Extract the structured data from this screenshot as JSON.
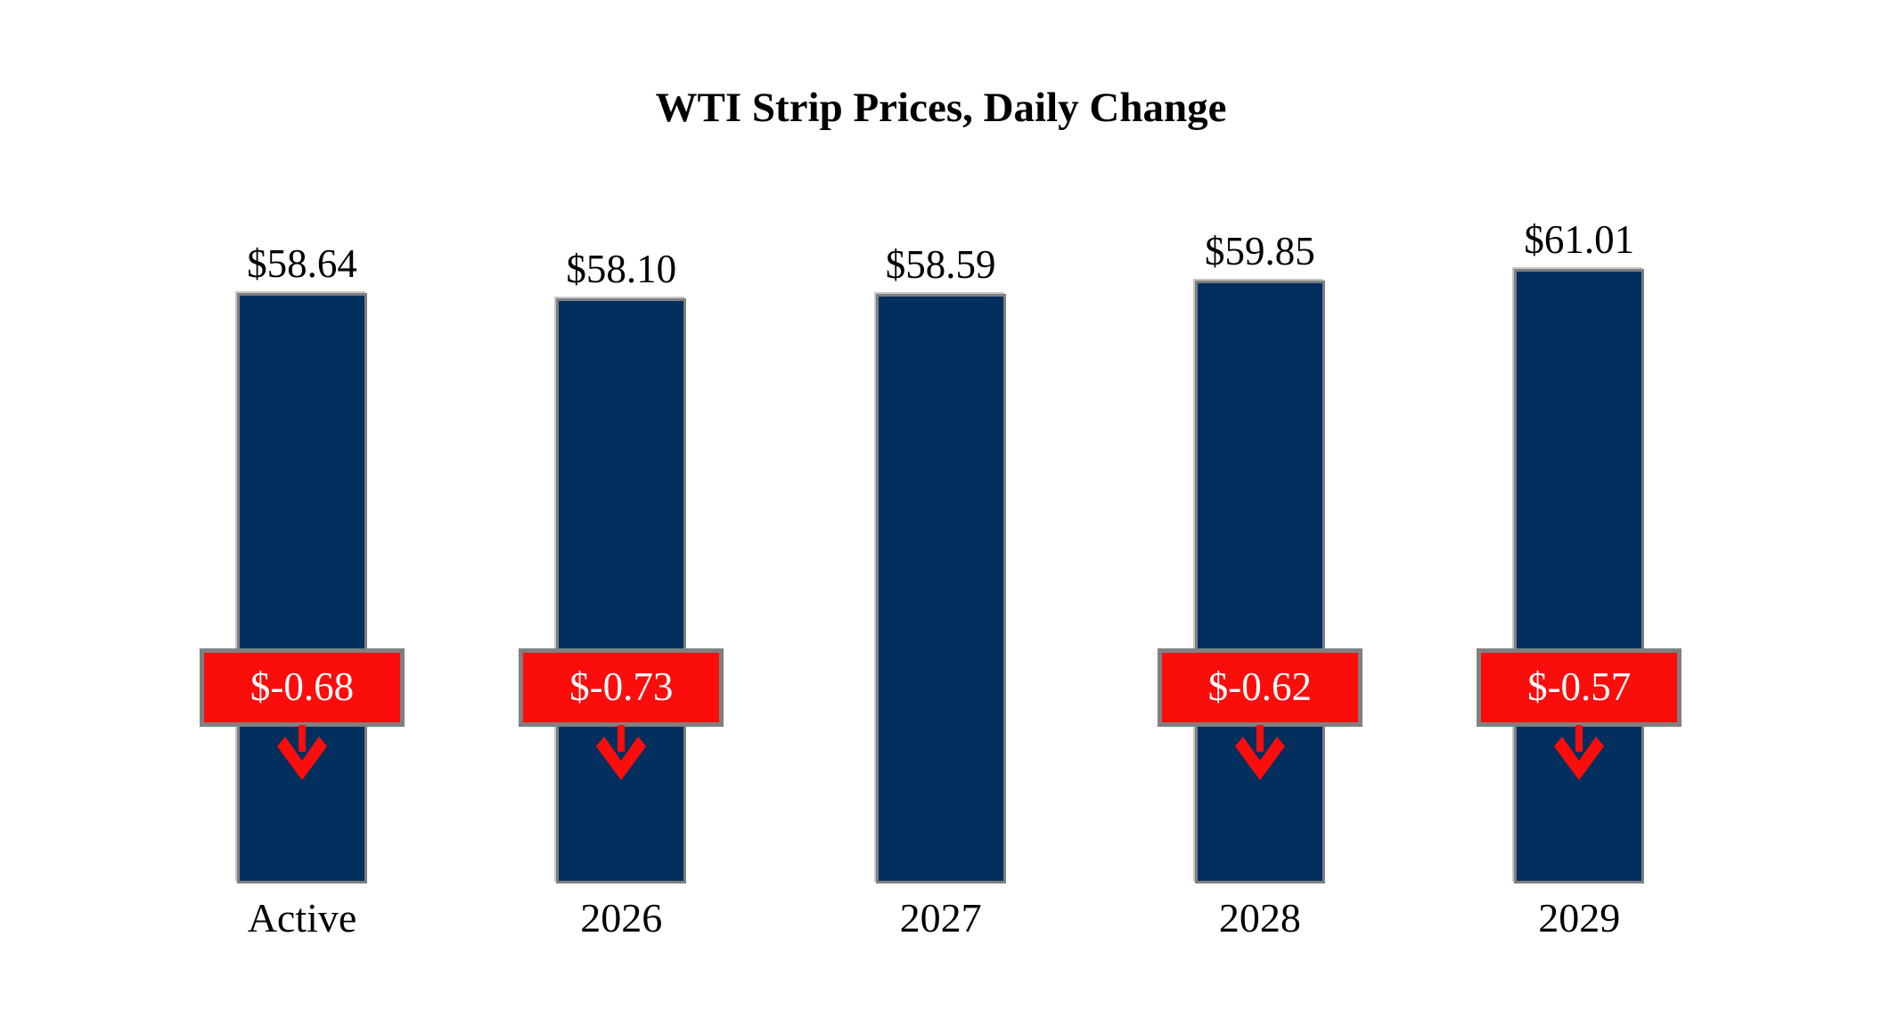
{
  "title": "WTI Strip Prices, Daily Change",
  "chart_data": {
    "type": "bar",
    "title": "WTI Strip Prices, Daily Change",
    "categories": [
      "Active",
      "2026",
      "2027",
      "2028",
      "2029"
    ],
    "series": [
      {
        "name": "WTI Strip Price",
        "values": [
          58.64,
          58.1,
          58.59,
          59.85,
          61.01
        ]
      }
    ],
    "value_labels": [
      "$58.64",
      "$58.10",
      "$58.59",
      "$59.85",
      "$61.01"
    ],
    "daily_change_values": [
      -0.68,
      -0.73,
      null,
      -0.62,
      -0.57
    ],
    "change_labels": [
      "$-0.68",
      "$-0.73",
      null,
      "$-0.62",
      "$-0.57"
    ],
    "change_arrow_icon": "down-arrow",
    "xlabel": "",
    "ylabel": "",
    "ylim": [
      0,
      65
    ],
    "grid": false,
    "legend": "none",
    "colors": {
      "bar_fill": "#032f5e",
      "bar_border": "#7f7f7f",
      "change_fill": "#fb0d0c",
      "change_border": "#808080",
      "change_text": "#ffffff",
      "arrow": "#fb0d0c",
      "title_text": "#000000",
      "label_text": "#000000",
      "background": "#ffffff"
    }
  }
}
